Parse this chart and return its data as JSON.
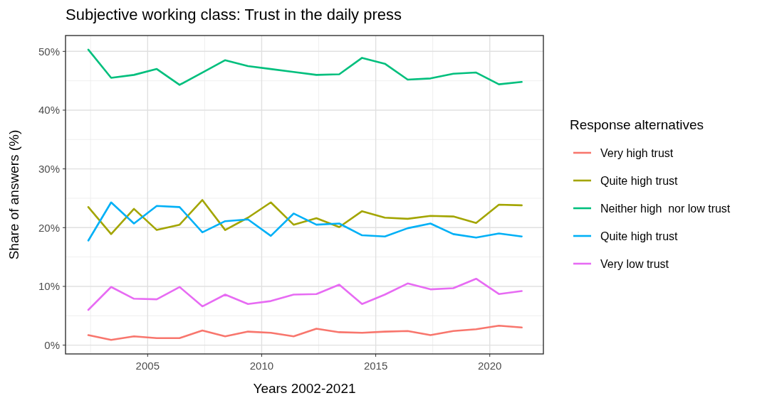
{
  "chart_data": {
    "type": "line",
    "title": "Subjective working class: Trust in the daily press",
    "xlabel": "Years 2002-2021",
    "ylabel": "Share of answers (%)",
    "legend_title": "Response alternatives",
    "x": [
      2002.4,
      2003.4,
      2004.4,
      2005.4,
      2006.4,
      2007.4,
      2008.4,
      2009.4,
      2010.4,
      2011.4,
      2012.4,
      2013.4,
      2014.4,
      2015.4,
      2016.4,
      2017.4,
      2018.4,
      2019.4,
      2020.4,
      2021.4
    ],
    "xlim": [
      2001.4,
      2022.35
    ],
    "xticks": [
      2005,
      2010,
      2015,
      2020
    ],
    "ylim": [
      -1.5,
      52.7
    ],
    "yticks": [
      {
        "value": 0,
        "label": "0%"
      },
      {
        "value": 10,
        "label": "10%"
      },
      {
        "value": 20,
        "label": "20%"
      },
      {
        "value": 30,
        "label": "30%"
      },
      {
        "value": 40,
        "label": "40%"
      },
      {
        "value": 50,
        "label": "50%"
      }
    ],
    "grid": true,
    "legend": "right",
    "line_style": "solid",
    "series": [
      {
        "name": "Very high trust",
        "color": "#f8766d",
        "values": [
          1.7,
          0.9,
          1.5,
          1.2,
          1.2,
          2.5,
          1.5,
          2.3,
          2.1,
          1.5,
          2.8,
          2.2,
          2.1,
          2.3,
          2.4,
          1.7,
          2.4,
          2.7,
          3.3,
          3.0
        ]
      },
      {
        "name": "Quite high trust",
        "color": "#a3a500",
        "values": [
          23.5,
          18.9,
          23.2,
          19.6,
          20.5,
          24.7,
          19.6,
          21.7,
          24.3,
          20.5,
          21.6,
          20.1,
          22.8,
          21.7,
          21.5,
          22.0,
          21.9,
          20.8,
          23.9,
          23.8
        ]
      },
      {
        "name": "Neither high  nor low trust",
        "color": "#00bf7d",
        "values": [
          50.3,
          45.5,
          46.0,
          47.0,
          44.3,
          46.4,
          48.5,
          47.5,
          47.0,
          46.5,
          46.0,
          46.1,
          48.9,
          47.9,
          45.2,
          45.4,
          46.2,
          46.4,
          44.4,
          44.8
        ]
      },
      {
        "name": "Quite high trust",
        "color": "#00b0f6",
        "values": [
          17.8,
          24.3,
          20.7,
          23.7,
          23.5,
          19.2,
          21.1,
          21.4,
          18.6,
          22.4,
          20.5,
          20.7,
          18.7,
          18.5,
          19.9,
          20.7,
          18.9,
          18.3,
          19.0,
          18.5
        ]
      },
      {
        "name": "Very low trust",
        "color": "#e76bf3",
        "values": [
          6.0,
          9.9,
          7.9,
          7.8,
          9.9,
          6.6,
          8.6,
          7.0,
          7.5,
          8.6,
          8.7,
          10.3,
          7.0,
          8.6,
          10.5,
          9.5,
          9.7,
          11.3,
          8.7,
          9.2
        ]
      }
    ]
  }
}
